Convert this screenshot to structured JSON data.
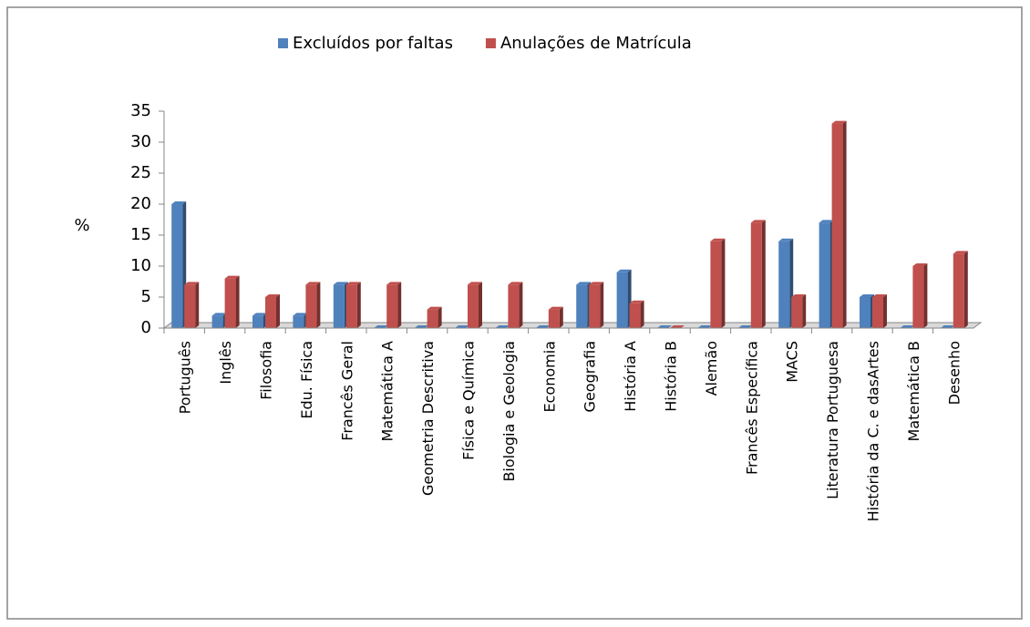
{
  "chart_data": {
    "type": "bar",
    "y_label": "%",
    "categories": [
      "Português",
      "Inglês",
      "Filosofia",
      "Edu. Física",
      "Francês Geral",
      "Matemática A",
      "Geometria Descritiva",
      "Física e Química",
      "Biologia e Geologia",
      "Economia",
      "Geografia",
      "História A",
      "História B",
      "Alemão",
      "Francês Específica",
      "MACS",
      "Literatura Portuguesa",
      "História da C. e dasArtes",
      "Matemática B",
      "Desenho"
    ],
    "series": [
      {
        "name": "Excluídos por faltas",
        "color": "#4f81bd",
        "values": [
          20,
          2,
          2,
          2,
          7,
          0,
          0,
          0,
          0,
          0,
          7,
          9,
          0,
          0,
          0,
          14,
          17,
          5,
          0,
          0
        ]
      },
      {
        "name": "Anulações de  Matrícula",
        "color": "#c0504d",
        "values": [
          7,
          8,
          5,
          7,
          7,
          7,
          3,
          7,
          7,
          3,
          7,
          4,
          0,
          14,
          17,
          5,
          33,
          5,
          10,
          12
        ]
      }
    ],
    "ylim": [
      0,
      35
    ],
    "yticks": [
      0,
      5,
      10,
      15,
      20,
      25,
      30,
      35
    ],
    "legend": "top"
  }
}
